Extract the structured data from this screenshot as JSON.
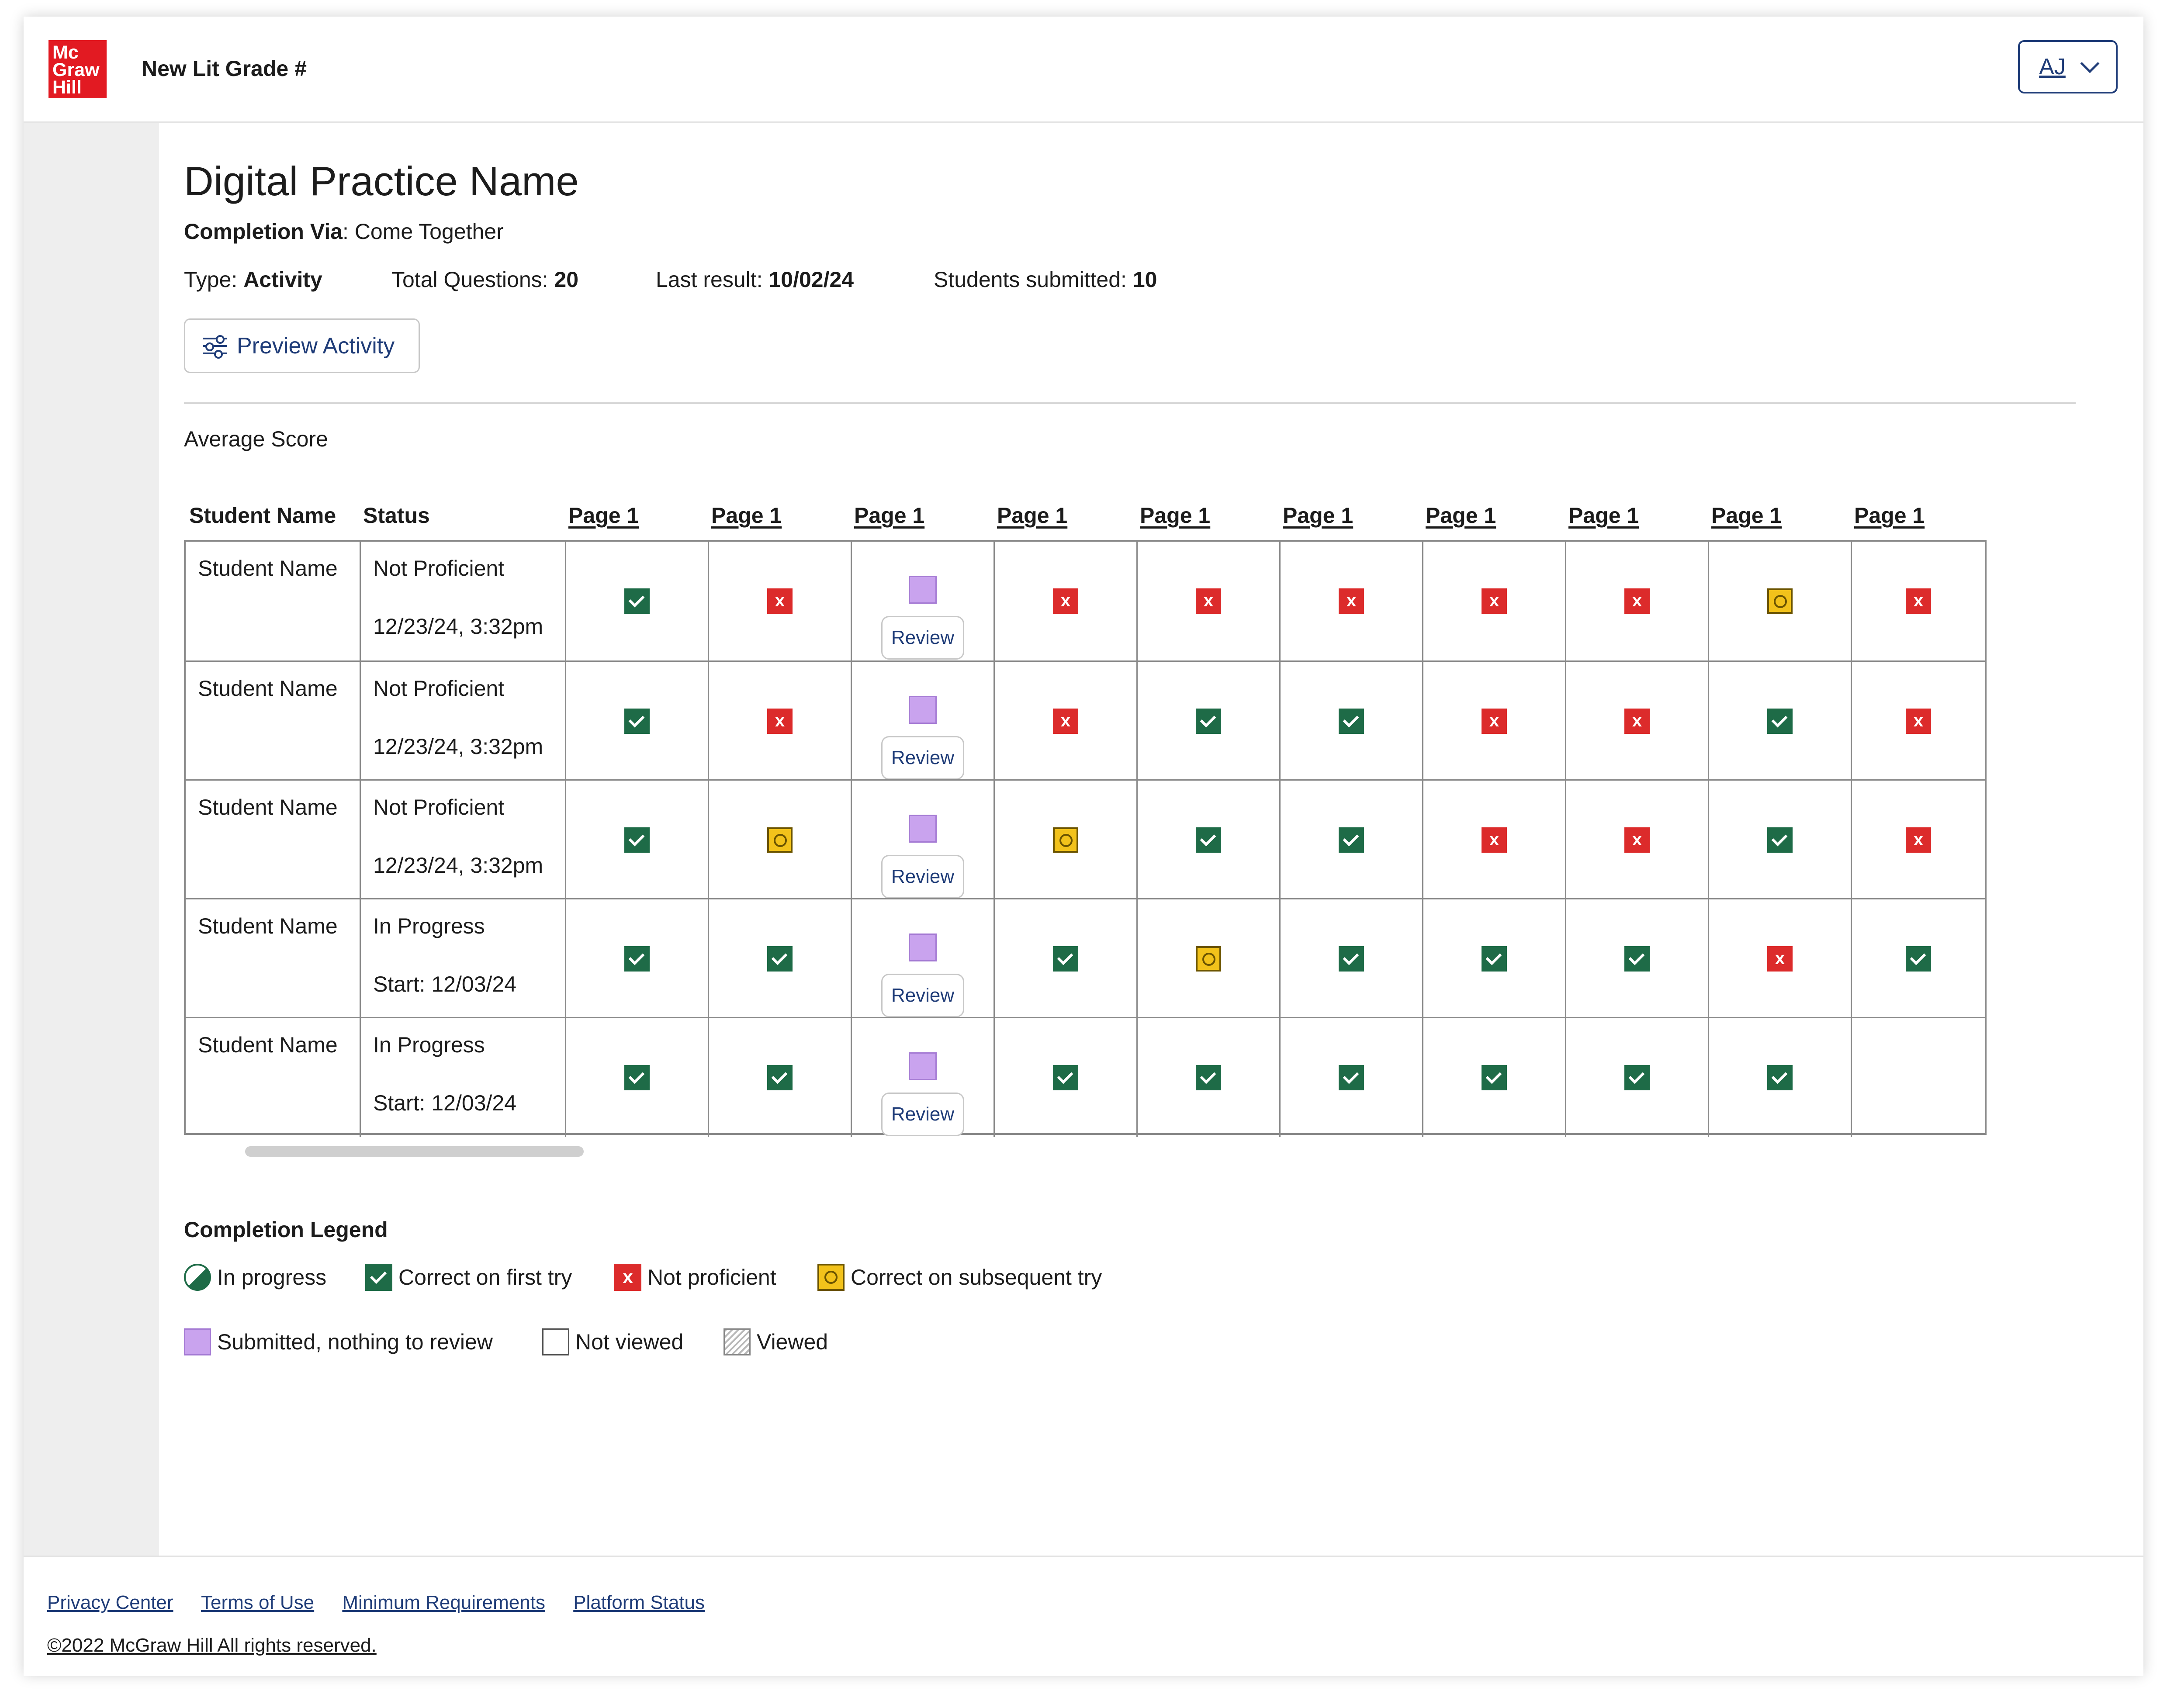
{
  "header": {
    "logo_lines": [
      "Mc",
      "Graw",
      "Hill"
    ],
    "app_title": "New Lit Grade #",
    "user_initials": "AJ"
  },
  "activity": {
    "title": "Digital Practice Name",
    "completion_label": "Completion Via",
    "completion_value": ": Come Together",
    "type_label": "Type: ",
    "type_value": "Activity",
    "total_questions_label": "Total Questions: ",
    "total_questions_value": "20",
    "last_result_label": "Last result: ",
    "last_result_value": "10/02/24",
    "students_submitted_label": "Students submitted: ",
    "students_submitted_value": "10",
    "preview_button": "Preview Activity",
    "average_score_label": "Average Score"
  },
  "table": {
    "headers": {
      "student": "Student Name",
      "status": "Status",
      "pages": [
        "Page 1",
        "Page 1",
        "Page 1",
        "Page 1",
        "Page 1",
        "Page 1",
        "Page 1",
        "Page 1",
        "Page 1",
        "Page 1"
      ]
    },
    "review_label": "Review",
    "incorrect_glyph": "x",
    "rows": [
      {
        "name": "Student Name",
        "status": "Not Proficient",
        "date": "12/23/24, 3:32pm",
        "marks": [
          "correct",
          "incorrect",
          "review",
          "incorrect",
          "incorrect",
          "incorrect",
          "incorrect",
          "incorrect",
          "subsequent",
          "incorrect"
        ]
      },
      {
        "name": "Student Name",
        "status": "Not Proficient",
        "date": "12/23/24, 3:32pm",
        "marks": [
          "correct",
          "incorrect",
          "review",
          "incorrect",
          "correct",
          "correct",
          "incorrect",
          "incorrect",
          "correct",
          "incorrect"
        ]
      },
      {
        "name": "Student Name",
        "status": "Not Proficient",
        "date": "12/23/24, 3:32pm",
        "marks": [
          "correct",
          "subsequent",
          "review",
          "subsequent",
          "correct",
          "correct",
          "incorrect",
          "incorrect",
          "correct",
          "incorrect"
        ]
      },
      {
        "name": "Student Name",
        "status": "In Progress",
        "date": "Start: 12/03/24",
        "marks": [
          "correct",
          "correct",
          "review",
          "correct",
          "subsequent",
          "correct",
          "correct",
          "correct",
          "incorrect",
          "correct"
        ]
      },
      {
        "name": "Student Name",
        "status": "In Progress",
        "date": "Start: 12/03/24",
        "marks": [
          "correct",
          "correct",
          "review",
          "correct",
          "correct",
          "correct",
          "correct",
          "correct",
          "correct",
          "empty"
        ]
      }
    ]
  },
  "legend": {
    "title": "Completion Legend",
    "in_progress": "In progress",
    "correct_first": "Correct on first try",
    "not_proficient": "Not proficient",
    "correct_subsequent": "Correct on subsequent try",
    "submitted": "Submitted, nothing to review",
    "not_viewed": "Not viewed",
    "viewed": "Viewed"
  },
  "footer": {
    "links": [
      "Privacy Center",
      "Terms of Use",
      "Minimum Requirements",
      "Platform Status"
    ],
    "copyright": "©2022 McGraw Hill All rights reserved."
  },
  "colors": {
    "brand_red": "#e21a22",
    "correct_green": "#1e6b47",
    "incorrect_red": "#dc2b2b",
    "subsequent_yellow": "#f2c21b",
    "submitted_purple": "#c9a3ee",
    "link_navy": "#1f3c78"
  }
}
